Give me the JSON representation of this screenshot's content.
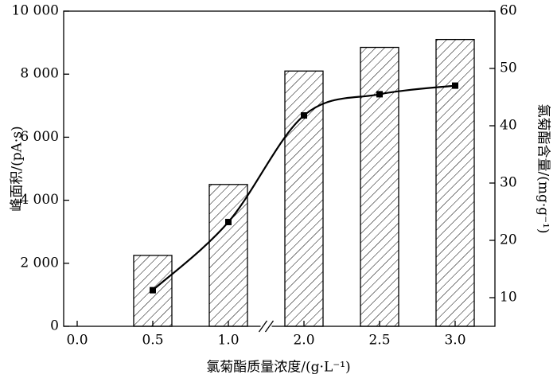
{
  "chart_data": {
    "type": "bar",
    "x_label": "氯菊酯质量浓度/(g·L⁻¹)",
    "y_label": "峰面积/(pA·s)",
    "y2_label": "氯菊酯含量/(mg·g⁻¹)",
    "categories": [
      "0.0",
      "0.5",
      "1.0",
      "2.0",
      "2.5",
      "3.0"
    ],
    "series": [
      {
        "type": "bar",
        "color": "#000000",
        "values": [
          null,
          2250,
          4500,
          8100,
          8850,
          9100
        ]
      },
      {
        "type": "line",
        "axis": "y2",
        "color": "#000000",
        "values": [
          null,
          11.3,
          23.2,
          41.8,
          45.5,
          47.0
        ]
      }
    ],
    "ylim": [
      0,
      10000
    ],
    "yticks": [
      0,
      {
        "value": 2000,
        "label": "2 000"
      },
      {
        "value": 4000,
        "label": "4 000"
      },
      {
        "value": 6000,
        "label": "6 000"
      },
      {
        "value": 8000,
        "label": "8 000"
      },
      {
        "value": 10000,
        "label": "10 000"
      }
    ],
    "y2lim": [
      5,
      60
    ],
    "y2ticks": [
      10,
      20,
      30,
      40,
      50,
      60
    ],
    "axis_break": true
  }
}
